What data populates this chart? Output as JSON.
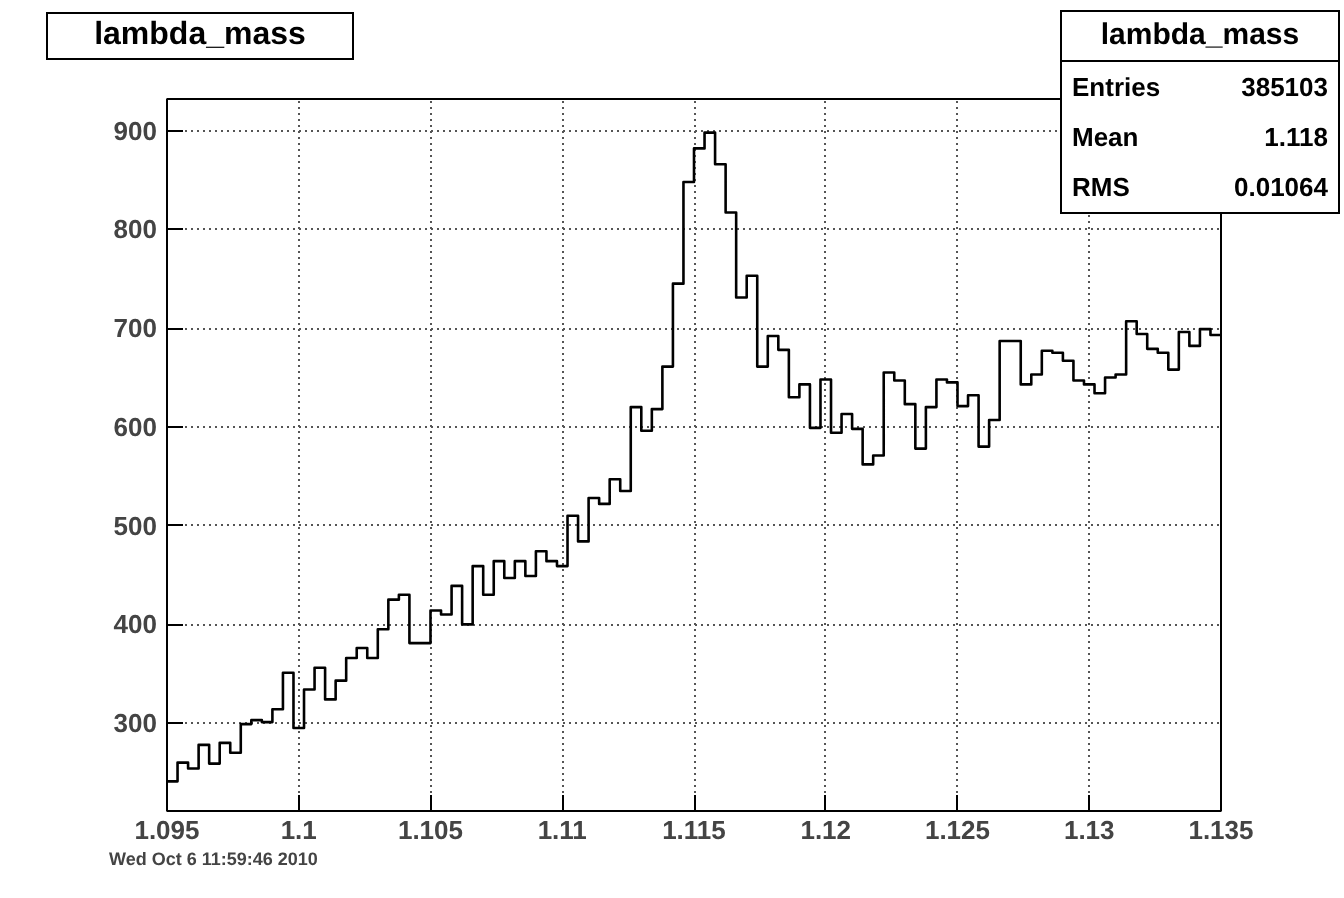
{
  "chart_data": {
    "type": "histogram",
    "title": "lambda_mass",
    "bins": [
      1.095,
      1.0954,
      1.0958,
      1.0962,
      1.0966,
      1.097,
      1.0974,
      1.0978,
      1.0982,
      1.0986,
      1.099,
      1.0994,
      1.0998,
      1.1002,
      1.1006,
      1.101,
      1.1014,
      1.1018,
      1.1022,
      1.1026,
      1.103,
      1.1034,
      1.1038,
      1.1042,
      1.1046,
      1.105,
      1.1054,
      1.1058,
      1.1062,
      1.1066,
      1.107,
      1.1074,
      1.1078,
      1.1082,
      1.1086,
      1.109,
      1.1094,
      1.1098,
      1.1102,
      1.1106,
      1.111,
      1.1114,
      1.1118,
      1.1122,
      1.1126,
      1.113,
      1.1134,
      1.1138,
      1.1142,
      1.1146,
      1.115,
      1.1154,
      1.1158,
      1.1162,
      1.1166,
      1.117,
      1.1174,
      1.1178,
      1.1182,
      1.1186,
      1.119,
      1.1194,
      1.1198,
      1.1202,
      1.1206,
      1.121,
      1.1214,
      1.1218,
      1.1222,
      1.1226,
      1.123,
      1.1234,
      1.1238,
      1.1242,
      1.1246,
      1.125,
      1.1254,
      1.1258,
      1.1262,
      1.1266,
      1.127,
      1.1274,
      1.1278,
      1.1282,
      1.1286,
      1.129,
      1.1294,
      1.1298,
      1.1302,
      1.1306,
      1.131,
      1.1314,
      1.1318,
      1.1322,
      1.1326,
      1.133,
      1.1334,
      1.1338,
      1.1342,
      1.1346,
      1.135
    ],
    "values": [
      241,
      260,
      254,
      278,
      259,
      280,
      270,
      299,
      303,
      301,
      314,
      351,
      295,
      334,
      356,
      324,
      343,
      366,
      376,
      366,
      395,
      425,
      430,
      381,
      381,
      414,
      410,
      439,
      400,
      459,
      430,
      464,
      447,
      464,
      449,
      474,
      464,
      459,
      510,
      484,
      528,
      522,
      547,
      535,
      620,
      596,
      618,
      661,
      745,
      848,
      882,
      898,
      866,
      817,
      731,
      753,
      661,
      692,
      678,
      630,
      643,
      599,
      648,
      594,
      613,
      598,
      562,
      571,
      655,
      647,
      623,
      578,
      620,
      648,
      645,
      621,
      632,
      580,
      607,
      687,
      687,
      643,
      653,
      677,
      675,
      667,
      647,
      643,
      634,
      650,
      653,
      707,
      694,
      679,
      675,
      658,
      696,
      682,
      699,
      693
    ],
    "color": "#000000",
    "xlim": [
      1.095,
      1.135
    ],
    "xticks": [
      1.095,
      1.1,
      1.105,
      1.11,
      1.115,
      1.12,
      1.125,
      1.13,
      1.135
    ],
    "ylim": [
      211,
      932
    ],
    "yticks": [
      300,
      400,
      500,
      600,
      700,
      800,
      900
    ],
    "grid": true,
    "annotations": [
      "lambda_mass",
      "Entries 385103",
      "Mean 1.118",
      "RMS 0.01064",
      "Wed Oct  6 11:59:46 2010"
    ]
  }
}
